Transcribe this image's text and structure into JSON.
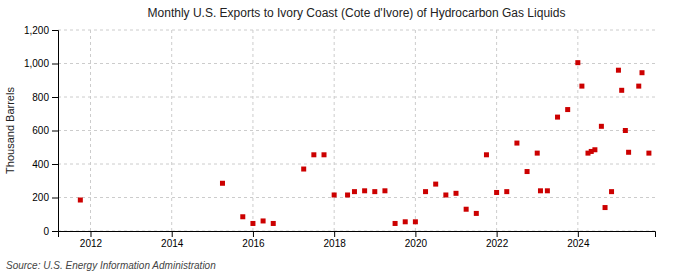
{
  "chart_data": {
    "type": "scatter",
    "title": "Monthly U.S. Exports to Ivory Coast (Cote d'Ivore) of Hydrocarbon Gas Liquids",
    "y_label": "Thousand Barrels",
    "annotations": [
      "Source: U.S. Energy Information Administration"
    ],
    "color": "#cc0000",
    "marker": "square",
    "grid": true,
    "xlim": [
      2011.2,
      2025.9
    ],
    "xticks": [
      2012,
      2014,
      2016,
      2018,
      2020,
      2022,
      2024
    ],
    "ylim": [
      0,
      1200
    ],
    "yticks": [
      0,
      200,
      400,
      600,
      800,
      {
        "value": 1000,
        "label": "1,000"
      },
      {
        "value": 1200,
        "label": "1,200"
      }
    ],
    "x": [
      2011.75,
      2015.25,
      2015.75,
      2016.0,
      2016.25,
      2016.5,
      2017.25,
      2017.5,
      2017.75,
      2018.0,
      2018.33,
      2018.5,
      2018.75,
      2019.0,
      2019.25,
      2019.5,
      2019.75,
      2020.0,
      2020.25,
      2020.5,
      2020.75,
      2021.0,
      2021.25,
      2021.5,
      2021.75,
      2022.0,
      2022.25,
      2022.5,
      2022.75,
      2023.0,
      2023.08,
      2023.25,
      2023.5,
      2023.75,
      2024.0,
      2024.1,
      2024.25,
      2024.33,
      2024.42,
      2024.58,
      2024.67,
      2024.83,
      2025.0,
      2025.08,
      2025.17,
      2025.25,
      2025.5,
      2025.58,
      2025.75
    ],
    "values": [
      185,
      285,
      85,
      45,
      60,
      45,
      370,
      455,
      455,
      215,
      215,
      235,
      240,
      235,
      240,
      45,
      55,
      55,
      235,
      280,
      215,
      225,
      130,
      105,
      455,
      230,
      235,
      525,
      355,
      465,
      240,
      240,
      680,
      725,
      1005,
      865,
      465,
      475,
      485,
      625,
      140,
      235,
      960,
      840,
      600,
      470,
      865,
      945,
      465
    ]
  }
}
